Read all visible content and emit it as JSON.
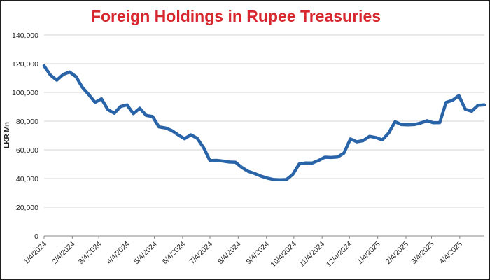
{
  "chart_data": {
    "type": "line",
    "title": "Foreign Holdings in Rupee Treasuries",
    "xlabel": "",
    "ylabel": "LKR Mn",
    "ylim": [
      0,
      140000
    ],
    "yticks": [
      0,
      20000,
      40000,
      60000,
      80000,
      100000,
      120000,
      140000
    ],
    "ytick_labels": [
      "0",
      "20,000",
      "40,000",
      "60,000",
      "80,000",
      "100,000",
      "120,000",
      "140,000"
    ],
    "xtick_labels": [
      "1/4/2024",
      "2/4/2024",
      "3/4/2024",
      "4/4/2024",
      "5/4/2024",
      "6/4/2024",
      "7/4/2024",
      "8/4/2024",
      "9/4/2024",
      "10/4/2024",
      "11/4/2024",
      "12/4/2024",
      "1/4/2025",
      "2/4/2025",
      "3/4/2025",
      "4/4/2025"
    ],
    "grid": true,
    "series": [
      {
        "color": "#2a64a8",
        "x": [
          "1/4/2024",
          "1/11/2024",
          "1/18/2024",
          "1/25/2024",
          "2/1/2024",
          "2/8/2024",
          "2/15/2024",
          "2/22/2024",
          "2/29/2024",
          "3/7/2024",
          "3/14/2024",
          "3/21/2024",
          "3/28/2024",
          "4/4/2024",
          "4/11/2024",
          "4/18/2024",
          "4/25/2024",
          "5/2/2024",
          "5/9/2024",
          "5/16/2024",
          "5/23/2024",
          "5/30/2024",
          "6/6/2024",
          "6/13/2024",
          "6/20/2024",
          "6/27/2024",
          "7/4/2024",
          "7/11/2024",
          "7/18/2024",
          "7/25/2024",
          "8/1/2024",
          "8/8/2024",
          "8/15/2024",
          "8/22/2024",
          "8/29/2024",
          "9/5/2024",
          "9/12/2024",
          "9/19/2024",
          "9/26/2024",
          "10/3/2024",
          "10/10/2024",
          "10/17/2024",
          "10/24/2024",
          "10/31/2024",
          "11/7/2024",
          "11/14/2024",
          "11/21/2024",
          "11/28/2024",
          "12/5/2024",
          "12/12/2024",
          "12/19/2024",
          "12/26/2024",
          "1/2/2025",
          "1/9/2025",
          "1/16/2025",
          "1/23/2025",
          "1/30/2025",
          "2/6/2025",
          "2/13/2025",
          "2/20/2025",
          "2/27/2025",
          "3/6/2025",
          "3/13/2025",
          "3/20/2025",
          "3/27/2025",
          "4/3/2025",
          "4/10/2025",
          "4/17/2025",
          "4/24/2025",
          "5/1/2025"
        ],
        "values": [
          118500,
          112000,
          108500,
          112500,
          114200,
          111000,
          103500,
          98500,
          93000,
          95500,
          88000,
          85500,
          90200,
          91300,
          85200,
          89000,
          84000,
          83200,
          76000,
          75300,
          73500,
          70500,
          67700,
          70500,
          68000,
          61500,
          52500,
          52700,
          52200,
          51500,
          51300,
          47700,
          45000,
          43500,
          41700,
          40300,
          39300,
          39100,
          39300,
          43000,
          50200,
          50900,
          50800,
          52600,
          54900,
          54700,
          55000,
          57700,
          67600,
          65600,
          66400,
          69400,
          68600,
          66900,
          71700,
          79600,
          77600,
          77400,
          77600,
          78700,
          80300,
          78900,
          79000,
          93000,
          94500,
          97800,
          88300,
          86900,
          91000,
          91300
        ]
      }
    ]
  }
}
